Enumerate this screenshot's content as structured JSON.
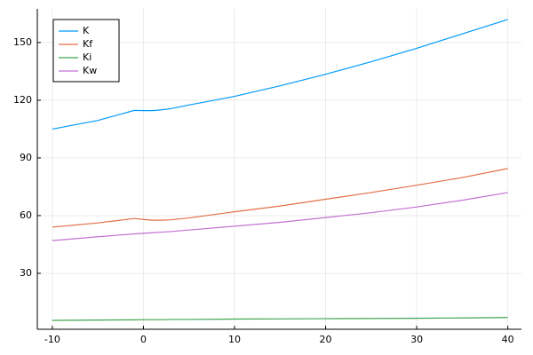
{
  "chart_data": {
    "type": "line",
    "x": [
      -10,
      -5,
      -1,
      0,
      1,
      2,
      3,
      5,
      10,
      15,
      20,
      25,
      30,
      35,
      40
    ],
    "series": [
      {
        "name": "K",
        "color": "#009afa",
        "values": [
          105,
          109.5,
          114.7,
          114.6,
          114.6,
          115,
          115.6,
          117.5,
          122,
          127.5,
          133.5,
          140,
          147,
          154.5,
          162
        ]
      },
      {
        "name": "Kf",
        "color": "#e36f47",
        "values": [
          54,
          56.2,
          58.5,
          58,
          57.6,
          57.6,
          57.8,
          58.8,
          62,
          65,
          68.5,
          72,
          75.8,
          79.8,
          84.5
        ]
      },
      {
        "name": "Ki",
        "color": "#3ea44e",
        "values": [
          5.5,
          5.7,
          5.8,
          5.9,
          5.9,
          5.9,
          6,
          6,
          6.2,
          6.3,
          6.4,
          6.5,
          6.6,
          6.8,
          7
        ]
      },
      {
        "name": "Kw",
        "color": "#c271d2",
        "values": [
          47,
          49,
          50.5,
          50.8,
          51.1,
          51.4,
          51.7,
          52.5,
          54.5,
          56.5,
          59,
          61.5,
          64.5,
          68,
          72
        ]
      }
    ],
    "xlim": [
      -11.65,
      41.5
    ],
    "xticks": [
      -10,
      0,
      10,
      20,
      30,
      40
    ],
    "ylim": [
      0.9,
      167.5
    ],
    "yticks": [
      30,
      60,
      90,
      120,
      150
    ],
    "grid": true,
    "legend": "top-left"
  }
}
